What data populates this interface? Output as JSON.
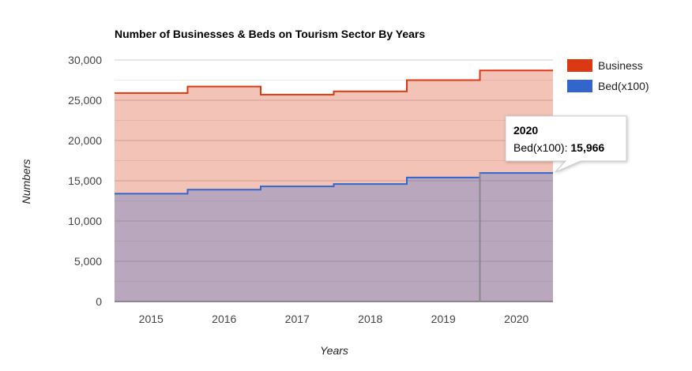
{
  "chart_data": {
    "type": "area",
    "step": true,
    "stacked": false,
    "title": "Number of Businesses & Beds on Tourism Sector By Years",
    "xlabel": "Years",
    "ylabel": "Numbers",
    "categories": [
      "2015",
      "2016",
      "2017",
      "2018",
      "2019",
      "2020"
    ],
    "ylim": [
      0,
      30000
    ],
    "yticks": [
      0,
      5000,
      10000,
      15000,
      20000,
      25000,
      30000
    ],
    "ytick_labels": [
      "0",
      "5,000",
      "10,000",
      "15,000",
      "20,000",
      "25,000",
      "30,000"
    ],
    "grid": true,
    "legend_position": "right",
    "series": [
      {
        "name": "Business",
        "color": "#dc3912",
        "values": [
          25900,
          26700,
          25700,
          26100,
          27500,
          28700
        ]
      },
      {
        "name": "Bed(x100)",
        "color": "#3366cc",
        "values": [
          13400,
          13900,
          14300,
          14600,
          15400,
          15966
        ]
      }
    ],
    "tooltip": {
      "title": "2020",
      "label": "Bed(x100): ",
      "value": "15,966"
    }
  }
}
